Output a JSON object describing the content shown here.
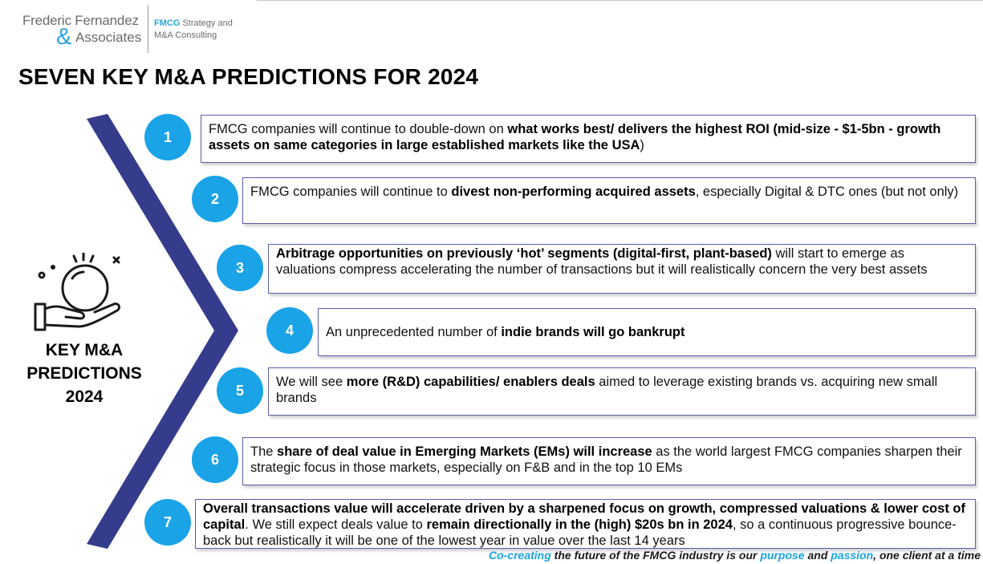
{
  "logo": {
    "name_line1": "Frederic Fernandez",
    "ampersand": "&",
    "name_line2": "Associates",
    "tagline_brand": "FMCG",
    "tagline_rest1": " Strategy and",
    "tagline_line2": "M&A Consulting"
  },
  "title": "SEVEN KEY M&A PREDICTIONS FOR 2024",
  "side_label": "KEY M&A\nPREDICTIONS\n2024",
  "predictions": [
    {
      "number": "1",
      "parts": [
        {
          "text": "FMCG companies will continue to double-down on ",
          "bold": false
        },
        {
          "text": "what works best/ delivers the highest ROI (mid-size - $1-5bn - growth assets on same categories in large established markets like the USA",
          "bold": true
        },
        {
          "text": ")",
          "bold": false
        }
      ]
    },
    {
      "number": "2",
      "parts": [
        {
          "text": "FMCG companies will continue to ",
          "bold": false
        },
        {
          "text": "divest non-performing acquired assets",
          "bold": true
        },
        {
          "text": ", especially Digital & DTC ones (but not only)",
          "bold": false
        }
      ]
    },
    {
      "number": "3",
      "parts": [
        {
          "text": "Arbitrage opportunities on previously ‘hot’ segments (digital-first, plant-based)",
          "bold": true
        },
        {
          "text": " will start to emerge as valuations compress accelerating the number of transactions but it will realistically concern the very best assets",
          "bold": false
        }
      ]
    },
    {
      "number": "4",
      "parts": [
        {
          "text": "An unprecedented number of ",
          "bold": false
        },
        {
          "text": "indie brands will go bankrupt",
          "bold": true
        }
      ]
    },
    {
      "number": "5",
      "parts": [
        {
          "text": "We will see ",
          "bold": false
        },
        {
          "text": "more (R&D) capabilities/ enablers deals",
          "bold": true
        },
        {
          "text": " aimed to leverage existing brands vs. acquiring new small brands",
          "bold": false
        }
      ]
    },
    {
      "number": "6",
      "parts": [
        {
          "text": "The ",
          "bold": false
        },
        {
          "text": "share of deal value in Emerging Markets (EMs) will increase",
          "bold": true
        },
        {
          "text": " as the world largest FMCG companies sharpen their strategic focus in those markets, especially on F&B and in the top 10 EMs",
          "bold": false
        }
      ]
    },
    {
      "number": "7",
      "parts": [
        {
          "text": "Overall transactions value will accelerate driven by a sharpened focus on growth, compressed valuations & lower cost of capital",
          "bold": true
        },
        {
          "text": ". We still expect deals value to ",
          "bold": false
        },
        {
          "text": "remain directionally in the (high) $20s bn in 2024",
          "bold": true
        },
        {
          "text": ", so a continuous progressive bounce-back but realistically it will be one of the lowest year in value over the last 14 years",
          "bold": false
        }
      ]
    }
  ],
  "footer": {
    "part1": "Co-creating",
    "part2": " the future of the FMCG industry is our ",
    "part3": "purpose",
    "part4": " and ",
    "part5": "passion",
    "part6": ", one client at a time"
  },
  "colors": {
    "accent_blue": "#1aa3e6",
    "chevron_navy": "#363c8c",
    "box_border": "#5b5ea8"
  },
  "icons": [
    "crystal-ball-hand-icon"
  ]
}
